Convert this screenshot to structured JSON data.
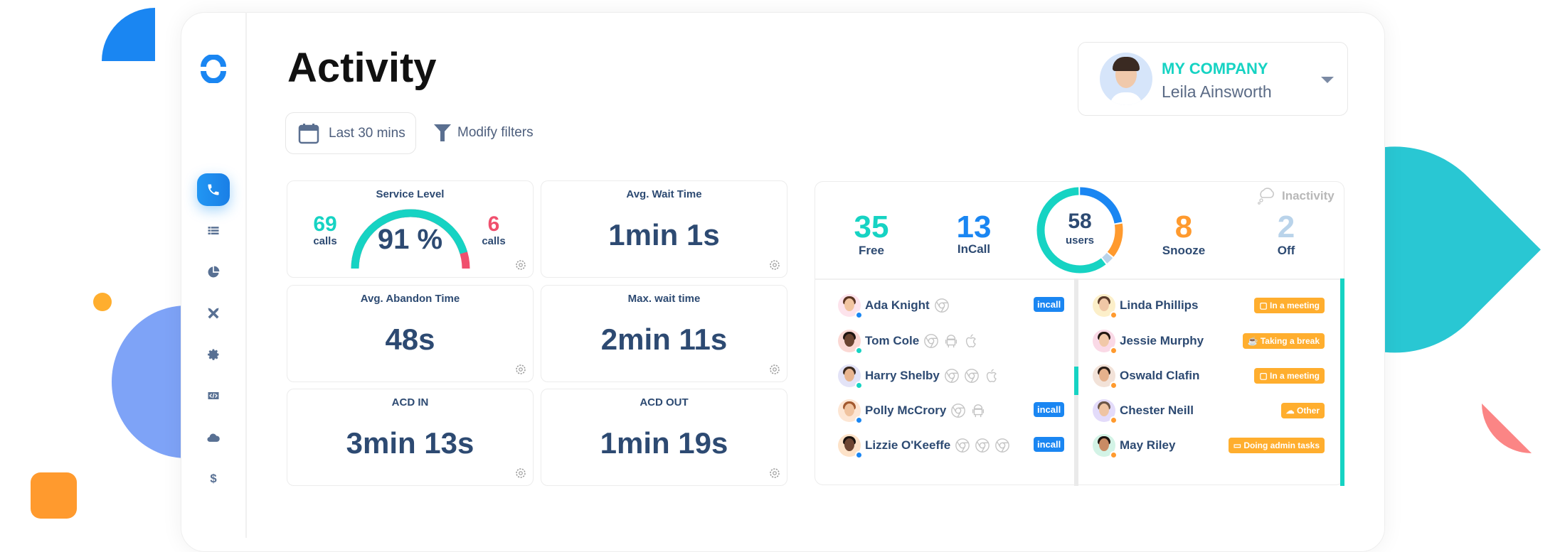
{
  "app": {
    "title": "Activity"
  },
  "sidebar": {
    "items": [
      {
        "name": "calls",
        "icon": "phone-icon",
        "active": true
      },
      {
        "name": "list",
        "icon": "list-icon"
      },
      {
        "name": "reports",
        "icon": "pie-chart-icon"
      },
      {
        "name": "tools",
        "icon": "crossed-tools-icon"
      },
      {
        "name": "settings",
        "icon": "gear-icon"
      },
      {
        "name": "developer",
        "icon": "code-icon"
      },
      {
        "name": "cloud",
        "icon": "cloud-icon"
      },
      {
        "name": "billing",
        "icon": "dollar-icon"
      }
    ]
  },
  "toolbar": {
    "date_range": "Last 30 mins",
    "modify_filters": "Modify filters"
  },
  "profile": {
    "company": "MY COMPANY",
    "name": "Leila Ainsworth"
  },
  "stats": {
    "service_level": {
      "title": "Service Level",
      "value": "91 %",
      "percent": 91,
      "left_count": "69",
      "left_label": "calls",
      "right_count": "6",
      "right_label": "calls"
    },
    "avg_wait": {
      "title": "Avg. Wait Time",
      "value": "1min 1s"
    },
    "avg_abandon": {
      "title": "Avg. Abandon Time",
      "value": "48s"
    },
    "max_wait": {
      "title": "Max. wait time",
      "value": "2min 11s"
    },
    "acd_in": {
      "title": "ACD IN",
      "value": "3min 13s"
    },
    "acd_out": {
      "title": "ACD OUT",
      "value": "1min 19s"
    }
  },
  "users": {
    "free": {
      "count": "35",
      "label": "Free",
      "color": "#16d3c3"
    },
    "incall": {
      "count": "13",
      "label": "InCall",
      "color": "#1a86f2"
    },
    "total": {
      "count": "58",
      "label": "users"
    },
    "snooze": {
      "count": "8",
      "label": "Snooze",
      "color": "#ff9a2e"
    },
    "off": {
      "count": "2",
      "label": "Off",
      "color": "#b9d3ea"
    },
    "inactivity_label": "Inactivity"
  },
  "active_agents": [
    {
      "name": "Ada Knight",
      "devices": [
        "chrome"
      ],
      "status": "incall",
      "badge": "incall",
      "skin": "#f1c4a0",
      "hair": "#5a3522",
      "bg": "#fde3ec"
    },
    {
      "name": "Tom Cole",
      "devices": [
        "chrome",
        "android",
        "apple"
      ],
      "status": "free",
      "badge": "",
      "skin": "#6b4330",
      "hair": "#1e1410",
      "bg": "#fbd8d4"
    },
    {
      "name": "Harry Shelby",
      "devices": [
        "chrome",
        "chrome",
        "apple"
      ],
      "status": "free",
      "badge": "",
      "skin": "#e8b590",
      "hair": "#3a2a20",
      "bg": "#e3e3f7"
    },
    {
      "name": "Polly McCrory",
      "devices": [
        "chrome",
        "android"
      ],
      "status": "incall",
      "badge": "incall",
      "skin": "#f0c39f",
      "hair": "#a2582e",
      "bg": "#fde6d4"
    },
    {
      "name": "Lizzie O'Keeffe",
      "devices": [
        "chrome",
        "chrome",
        "chrome"
      ],
      "status": "incall",
      "badge": "incall",
      "skin": "#6d4532",
      "hair": "#1a120e",
      "bg": "#fde2c8"
    }
  ],
  "inactive_agents": [
    {
      "name": "Linda Phillips",
      "badge": "In a meeting",
      "badge_icon": "briefcase-icon",
      "skin": "#f0c7a6",
      "hair": "#5a3b2a",
      "bg": "#fcefc9"
    },
    {
      "name": "Jessie Murphy",
      "badge": "Taking a break",
      "badge_icon": "coffee-icon",
      "skin": "#f1c8a8",
      "hair": "#231812",
      "bg": "#fad9e6"
    },
    {
      "name": "Oswald Clafin",
      "badge": "In a meeting",
      "badge_icon": "briefcase-icon",
      "skin": "#e5b18c",
      "hair": "#2a1d16",
      "bg": "#f2e2d8"
    },
    {
      "name": "Chester Neill",
      "badge": "Other",
      "badge_icon": "cloud-icon",
      "skin": "#efc4a2",
      "hair": "#6b5546",
      "bg": "#e3dbfa"
    },
    {
      "name": "May Riley",
      "badge": "Doing admin tasks",
      "badge_icon": "folder-icon",
      "skin": "#c98b64",
      "hair": "#1d1410",
      "bg": "#d3f3e6"
    }
  ],
  "colors": {
    "accent": "#1a86f2",
    "teal": "#16d3c3",
    "red": "#f0506e",
    "orange": "#ffae2e",
    "text": "#2d4a72"
  }
}
